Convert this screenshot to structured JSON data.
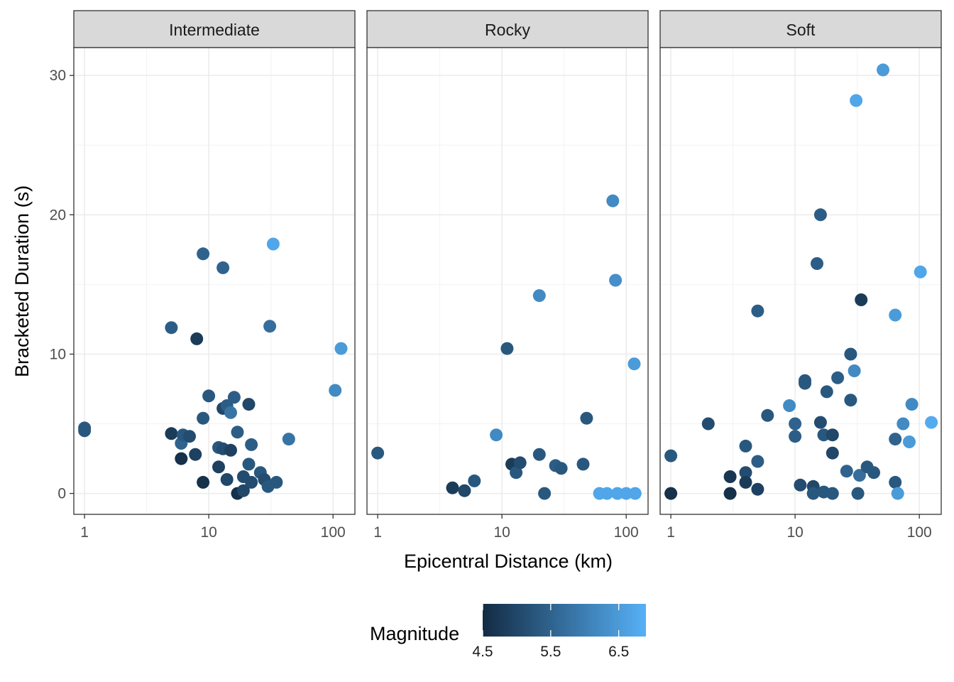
{
  "chart_data": {
    "type": "scatter",
    "xlabel": "Epicentral Distance (km)",
    "ylabel": "Bracketed Duration (s)",
    "x_scale": "log10",
    "xlim": [
      0.82,
      150
    ],
    "ylim": [
      -1.5,
      32
    ],
    "x_ticks": [
      1,
      10,
      100
    ],
    "x_tick_labels": [
      "1",
      "10",
      "100"
    ],
    "y_ticks": [
      0,
      10,
      20,
      30
    ],
    "y_tick_labels": [
      "0",
      "10",
      "20",
      "30"
    ],
    "grid": true,
    "legend": {
      "title": "Magnitude",
      "position": "bottom",
      "range": [
        4.5,
        6.9
      ],
      "ticks": [
        4.5,
        5.5,
        6.5
      ],
      "tick_labels": [
        "4.5",
        "5.5",
        "6.5"
      ],
      "color_low": "#132B43",
      "color_high": "#56B1F7"
    },
    "panels": [
      {
        "name": "Intermediate",
        "points": [
          {
            "x": 1,
            "y": 4.7,
            "m": 5.3
          },
          {
            "x": 1,
            "y": 4.5,
            "m": 5.3
          },
          {
            "x": 5,
            "y": 4.3,
            "m": 4.8
          },
          {
            "x": 5,
            "y": 11.9,
            "m": 5.4
          },
          {
            "x": 6,
            "y": 2.5,
            "m": 4.6
          },
          {
            "x": 6,
            "y": 3.6,
            "m": 5.5
          },
          {
            "x": 6.2,
            "y": 4.2,
            "m": 5.3
          },
          {
            "x": 7,
            "y": 4.1,
            "m": 5.1
          },
          {
            "x": 7.8,
            "y": 2.8,
            "m": 4.9
          },
          {
            "x": 8,
            "y": 11.1,
            "m": 4.8
          },
          {
            "x": 9,
            "y": 0.8,
            "m": 4.6
          },
          {
            "x": 9,
            "y": 5.4,
            "m": 5.3
          },
          {
            "x": 9,
            "y": 17.2,
            "m": 5.5
          },
          {
            "x": 10,
            "y": 7.0,
            "m": 5.3
          },
          {
            "x": 12,
            "y": 3.3,
            "m": 5.3
          },
          {
            "x": 12,
            "y": 1.9,
            "m": 4.9
          },
          {
            "x": 13,
            "y": 6.1,
            "m": 5.0
          },
          {
            "x": 13,
            "y": 3.2,
            "m": 5.1
          },
          {
            "x": 13,
            "y": 16.2,
            "m": 5.5
          },
          {
            "x": 14,
            "y": 6.3,
            "m": 5.4
          },
          {
            "x": 14,
            "y": 1.0,
            "m": 5.0
          },
          {
            "x": 15,
            "y": 3.1,
            "m": 4.9
          },
          {
            "x": 15,
            "y": 5.8,
            "m": 5.8
          },
          {
            "x": 16,
            "y": 6.9,
            "m": 5.4
          },
          {
            "x": 17,
            "y": 4.4,
            "m": 5.4
          },
          {
            "x": 17,
            "y": 0.0,
            "m": 4.6
          },
          {
            "x": 19,
            "y": 1.2,
            "m": 5.1
          },
          {
            "x": 19,
            "y": 0.2,
            "m": 5.0
          },
          {
            "x": 21,
            "y": 6.4,
            "m": 5.0
          },
          {
            "x": 21,
            "y": 2.1,
            "m": 5.3
          },
          {
            "x": 22,
            "y": 3.5,
            "m": 5.4
          },
          {
            "x": 22,
            "y": 0.8,
            "m": 5.1
          },
          {
            "x": 26,
            "y": 1.5,
            "m": 5.3
          },
          {
            "x": 28,
            "y": 1.0,
            "m": 5.1
          },
          {
            "x": 30,
            "y": 0.5,
            "m": 5.3
          },
          {
            "x": 31,
            "y": 12.0,
            "m": 5.7
          },
          {
            "x": 33,
            "y": 17.9,
            "m": 6.7
          },
          {
            "x": 35,
            "y": 0.8,
            "m": 5.3
          },
          {
            "x": 44,
            "y": 3.9,
            "m": 5.8
          },
          {
            "x": 104,
            "y": 7.4,
            "m": 6.2
          },
          {
            "x": 116,
            "y": 10.4,
            "m": 6.5
          }
        ]
      },
      {
        "name": "Rocky",
        "points": [
          {
            "x": 1,
            "y": 2.9,
            "m": 5.3
          },
          {
            "x": 4,
            "y": 0.4,
            "m": 4.8
          },
          {
            "x": 5,
            "y": 0.2,
            "m": 5.0
          },
          {
            "x": 6,
            "y": 0.9,
            "m": 5.3
          },
          {
            "x": 9,
            "y": 4.2,
            "m": 6.2
          },
          {
            "x": 11,
            "y": 10.4,
            "m": 5.3
          },
          {
            "x": 12,
            "y": 2.1,
            "m": 4.8
          },
          {
            "x": 13,
            "y": 1.5,
            "m": 5.3
          },
          {
            "x": 14,
            "y": 2.2,
            "m": 5.1
          },
          {
            "x": 20,
            "y": 2.8,
            "m": 5.3
          },
          {
            "x": 20,
            "y": 14.2,
            "m": 6.2
          },
          {
            "x": 22,
            "y": 0.0,
            "m": 5.3
          },
          {
            "x": 27,
            "y": 2.0,
            "m": 5.4
          },
          {
            "x": 30,
            "y": 1.8,
            "m": 5.3
          },
          {
            "x": 45,
            "y": 2.1,
            "m": 5.3
          },
          {
            "x": 48,
            "y": 5.4,
            "m": 5.3
          },
          {
            "x": 61,
            "y": 0.0,
            "m": 6.7
          },
          {
            "x": 70,
            "y": 0.0,
            "m": 6.7
          },
          {
            "x": 78,
            "y": 21.0,
            "m": 6.2
          },
          {
            "x": 82,
            "y": 15.3,
            "m": 6.3
          },
          {
            "x": 85,
            "y": 0.0,
            "m": 6.7
          },
          {
            "x": 100,
            "y": 0.0,
            "m": 6.7
          },
          {
            "x": 116,
            "y": 9.3,
            "m": 6.5
          },
          {
            "x": 118,
            "y": 0.0,
            "m": 6.7
          }
        ]
      },
      {
        "name": "Soft",
        "points": [
          {
            "x": 1,
            "y": 2.7,
            "m": 5.3
          },
          {
            "x": 1,
            "y": 0.0,
            "m": 4.6
          },
          {
            "x": 2,
            "y": 5.0,
            "m": 5.1
          },
          {
            "x": 3,
            "y": 0.0,
            "m": 4.6
          },
          {
            "x": 3,
            "y": 1.2,
            "m": 4.7
          },
          {
            "x": 4,
            "y": 3.4,
            "m": 5.3
          },
          {
            "x": 4,
            "y": 1.5,
            "m": 5.1
          },
          {
            "x": 4,
            "y": 0.8,
            "m": 4.8
          },
          {
            "x": 5,
            "y": 2.3,
            "m": 5.4
          },
          {
            "x": 5,
            "y": 0.3,
            "m": 4.9
          },
          {
            "x": 5,
            "y": 13.1,
            "m": 5.4
          },
          {
            "x": 6,
            "y": 5.6,
            "m": 5.3
          },
          {
            "x": 9,
            "y": 6.3,
            "m": 6.2
          },
          {
            "x": 10,
            "y": 5.0,
            "m": 5.5
          },
          {
            "x": 10,
            "y": 4.1,
            "m": 5.4
          },
          {
            "x": 11,
            "y": 0.6,
            "m": 5.1
          },
          {
            "x": 12,
            "y": 8.1,
            "m": 5.3
          },
          {
            "x": 12,
            "y": 7.9,
            "m": 5.3
          },
          {
            "x": 14,
            "y": 0.5,
            "m": 5.0
          },
          {
            "x": 14,
            "y": 0.0,
            "m": 5.3
          },
          {
            "x": 15,
            "y": 16.5,
            "m": 5.4
          },
          {
            "x": 16,
            "y": 20.0,
            "m": 5.4
          },
          {
            "x": 16,
            "y": 5.1,
            "m": 5.1
          },
          {
            "x": 17,
            "y": 0.1,
            "m": 5.3
          },
          {
            "x": 17,
            "y": 4.2,
            "m": 5.3
          },
          {
            "x": 18,
            "y": 7.3,
            "m": 5.3
          },
          {
            "x": 20,
            "y": 4.2,
            "m": 5.0
          },
          {
            "x": 20,
            "y": 2.9,
            "m": 5.0
          },
          {
            "x": 20,
            "y": 0.0,
            "m": 5.3
          },
          {
            "x": 22,
            "y": 8.3,
            "m": 5.4
          },
          {
            "x": 26,
            "y": 1.6,
            "m": 5.5
          },
          {
            "x": 28,
            "y": 10.0,
            "m": 5.3
          },
          {
            "x": 28,
            "y": 6.7,
            "m": 5.3
          },
          {
            "x": 30,
            "y": 8.8,
            "m": 6.2
          },
          {
            "x": 31,
            "y": 28.2,
            "m": 6.7
          },
          {
            "x": 32,
            "y": 0.0,
            "m": 5.3
          },
          {
            "x": 33,
            "y": 1.3,
            "m": 5.7
          },
          {
            "x": 34,
            "y": 13.9,
            "m": 4.8
          },
          {
            "x": 38,
            "y": 1.9,
            "m": 5.3
          },
          {
            "x": 43,
            "y": 1.5,
            "m": 5.3
          },
          {
            "x": 51,
            "y": 30.4,
            "m": 6.5
          },
          {
            "x": 64,
            "y": 12.8,
            "m": 6.5
          },
          {
            "x": 64,
            "y": 3.9,
            "m": 5.5
          },
          {
            "x": 64,
            "y": 0.8,
            "m": 5.3
          },
          {
            "x": 67,
            "y": 0.0,
            "m": 6.5
          },
          {
            "x": 74,
            "y": 5.0,
            "m": 6.2
          },
          {
            "x": 83,
            "y": 3.7,
            "m": 6.5
          },
          {
            "x": 87,
            "y": 6.4,
            "m": 6.2
          },
          {
            "x": 102,
            "y": 15.9,
            "m": 6.7
          },
          {
            "x": 125,
            "y": 5.1,
            "m": 6.8
          }
        ]
      }
    ]
  }
}
